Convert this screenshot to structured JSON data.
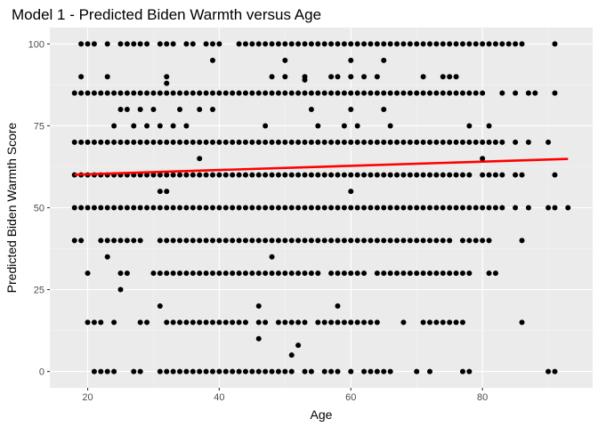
{
  "chart_data": {
    "type": "scatter",
    "title": "Model 1 - Predicted Biden Warmth versus Age",
    "xlabel": "Age",
    "ylabel": "Predicted Biden Warmth Score",
    "xlim": [
      14.25,
      96.75
    ],
    "ylim": [
      -5,
      105
    ],
    "xticks": [
      20,
      40,
      60,
      80
    ],
    "yticks": [
      0,
      25,
      50,
      75,
      100
    ],
    "grid": true,
    "legend": "none",
    "point_color": "#000000",
    "fit_color": "#ff0000",
    "panel_color": "#ebebeb",
    "fit_line": {
      "x": [
        18,
        93
      ],
      "y": [
        60.1,
        64.9
      ]
    },
    "rows": [
      {
        "y": 100,
        "x": [
          19,
          20,
          21,
          23,
          25,
          26,
          27,
          28,
          29,
          31,
          32,
          33,
          35,
          36,
          38,
          39,
          40,
          43,
          44,
          45,
          46,
          47,
          48,
          49,
          50,
          51,
          52,
          53,
          54,
          55,
          56,
          57,
          58,
          59,
          60,
          61,
          62,
          63,
          64,
          65,
          66,
          67,
          68,
          69,
          70,
          71,
          72,
          73,
          74,
          75,
          76,
          77,
          78,
          79,
          80,
          81,
          82,
          83,
          84,
          85,
          86,
          91
        ]
      },
      {
        "y": 95,
        "x": [
          39,
          50,
          60,
          65
        ]
      },
      {
        "y": 90,
        "x": [
          19,
          23,
          32,
          48,
          50,
          53,
          57,
          58,
          60,
          62,
          64,
          71,
          74,
          75,
          76
        ]
      },
      {
        "y": 89,
        "x": [
          53
        ]
      },
      {
        "y": 88,
        "x": [
          32
        ]
      },
      {
        "y": 85,
        "x": [
          18,
          19,
          20,
          21,
          22,
          23,
          24,
          25,
          26,
          27,
          28,
          29,
          30,
          31,
          32,
          33,
          34,
          35,
          36,
          37,
          38,
          39,
          40,
          41,
          42,
          43,
          44,
          45,
          46,
          47,
          48,
          49,
          50,
          51,
          52,
          53,
          54,
          55,
          56,
          57,
          58,
          59,
          60,
          61,
          62,
          63,
          64,
          65,
          66,
          67,
          68,
          69,
          70,
          71,
          72,
          73,
          74,
          75,
          76,
          77,
          78,
          79,
          80,
          83,
          85,
          87,
          88,
          91
        ]
      },
      {
        "y": 80,
        "x": [
          25,
          26,
          28,
          30,
          34,
          37,
          39,
          54,
          60,
          65
        ]
      },
      {
        "y": 75,
        "x": [
          24,
          27,
          29,
          31,
          33,
          35,
          47,
          55,
          59,
          61,
          66,
          78,
          81
        ]
      },
      {
        "y": 70,
        "x": [
          18,
          19,
          20,
          21,
          22,
          23,
          24,
          25,
          26,
          27,
          28,
          29,
          30,
          31,
          32,
          33,
          34,
          35,
          36,
          37,
          38,
          39,
          40,
          41,
          42,
          43,
          44,
          45,
          46,
          47,
          48,
          49,
          50,
          51,
          52,
          53,
          54,
          55,
          56,
          57,
          58,
          59,
          60,
          61,
          62,
          63,
          64,
          65,
          66,
          67,
          68,
          69,
          70,
          71,
          72,
          73,
          74,
          75,
          76,
          77,
          78,
          79,
          80,
          81,
          82,
          83,
          85,
          87,
          90
        ]
      },
      {
        "y": 65,
        "x": [
          37,
          80
        ]
      },
      {
        "y": 60,
        "x": [
          18,
          19,
          20,
          21,
          22,
          23,
          24,
          25,
          26,
          27,
          28,
          29,
          30,
          31,
          32,
          33,
          34,
          35,
          36,
          37,
          38,
          39,
          40,
          41,
          42,
          43,
          44,
          45,
          46,
          47,
          48,
          49,
          50,
          51,
          52,
          53,
          54,
          55,
          56,
          57,
          58,
          59,
          60,
          61,
          62,
          63,
          64,
          65,
          66,
          67,
          68,
          69,
          70,
          71,
          72,
          73,
          74,
          75,
          76,
          77,
          78,
          80,
          81,
          82,
          83,
          85,
          86,
          91
        ]
      },
      {
        "y": 55,
        "x": [
          31,
          32,
          60
        ]
      },
      {
        "y": 50,
        "x": [
          18,
          19,
          20,
          21,
          22,
          23,
          24,
          25,
          26,
          27,
          28,
          29,
          30,
          31,
          32,
          33,
          34,
          35,
          36,
          37,
          38,
          39,
          40,
          41,
          42,
          43,
          44,
          45,
          46,
          47,
          48,
          49,
          50,
          51,
          52,
          53,
          54,
          55,
          56,
          57,
          58,
          59,
          60,
          61,
          62,
          63,
          64,
          65,
          66,
          67,
          68,
          69,
          70,
          71,
          72,
          73,
          74,
          75,
          76,
          77,
          78,
          79,
          80,
          81,
          82,
          83,
          85,
          87,
          90,
          91,
          93
        ]
      },
      {
        "y": 40,
        "x": [
          18,
          19,
          22,
          23,
          24,
          25,
          26,
          27,
          28,
          31,
          32,
          33,
          34,
          35,
          36,
          37,
          38,
          39,
          40,
          41,
          42,
          43,
          44,
          45,
          46,
          47,
          48,
          49,
          50,
          51,
          52,
          53,
          54,
          55,
          56,
          57,
          58,
          59,
          60,
          61,
          62,
          63,
          64,
          65,
          66,
          67,
          68,
          69,
          70,
          71,
          72,
          73,
          74,
          75,
          77,
          78,
          79,
          80,
          81,
          86
        ]
      },
      {
        "y": 35,
        "x": [
          23,
          48
        ]
      },
      {
        "y": 30,
        "x": [
          20,
          25,
          26,
          30,
          31,
          32,
          33,
          34,
          35,
          36,
          37,
          38,
          39,
          40,
          41,
          42,
          43,
          44,
          45,
          46,
          47,
          48,
          49,
          50,
          51,
          52,
          53,
          54,
          55,
          57,
          58,
          59,
          60,
          61,
          62,
          64,
          65,
          66,
          67,
          68,
          69,
          70,
          71,
          72,
          73,
          74,
          75,
          76,
          77,
          78,
          81,
          82
        ]
      },
      {
        "y": 25,
        "x": [
          25
        ]
      },
      {
        "y": 20,
        "x": [
          31,
          46,
          58
        ]
      },
      {
        "y": 15,
        "x": [
          20,
          21,
          22,
          24,
          28,
          29,
          32,
          33,
          34,
          35,
          36,
          37,
          38,
          39,
          40,
          41,
          42,
          43,
          44,
          46,
          47,
          49,
          50,
          51,
          52,
          53,
          55,
          56,
          57,
          58,
          59,
          60,
          61,
          62,
          63,
          64,
          68,
          71,
          72,
          73,
          74,
          75,
          76,
          77,
          86
        ]
      },
      {
        "y": 10,
        "x": [
          46
        ]
      },
      {
        "y": 8,
        "x": [
          52
        ]
      },
      {
        "y": 5,
        "x": [
          51
        ]
      },
      {
        "y": 0,
        "x": [
          21,
          22,
          23,
          24,
          27,
          28,
          31,
          32,
          33,
          34,
          35,
          36,
          37,
          38,
          39,
          40,
          41,
          42,
          43,
          44,
          45,
          46,
          47,
          48,
          49,
          50,
          51,
          53,
          54,
          56,
          57,
          58,
          60,
          62,
          63,
          64,
          65,
          66,
          70,
          72,
          77,
          78,
          90,
          91
        ]
      }
    ]
  }
}
